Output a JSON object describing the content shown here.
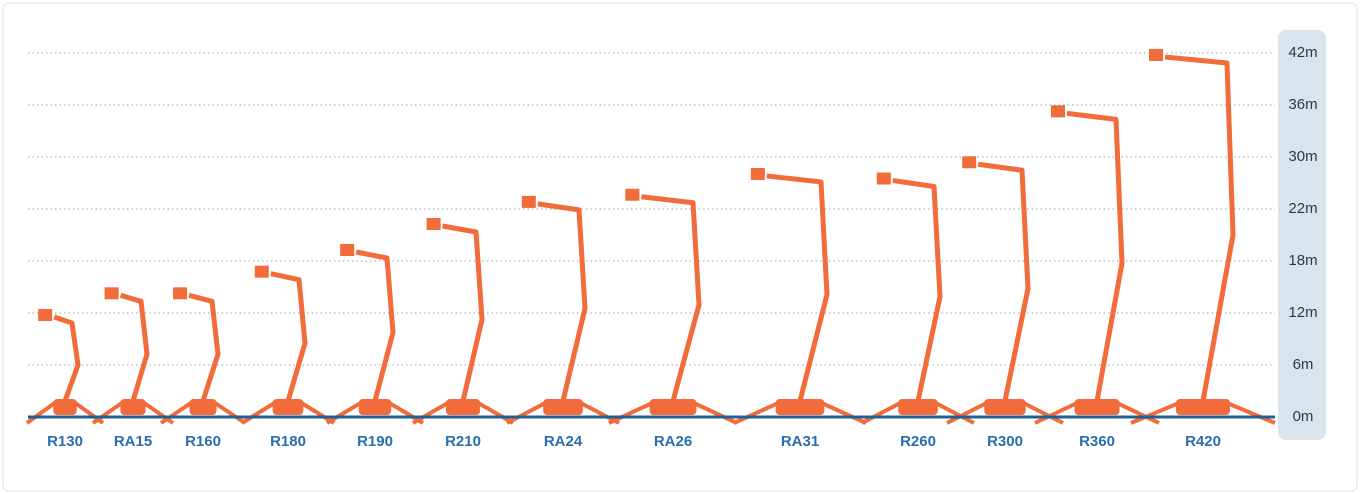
{
  "chart_data": {
    "type": "machines",
    "categories": [
      "R130",
      "RA15",
      "R160",
      "R180",
      "R190",
      "R210",
      "RA24",
      "RA26",
      "RA31",
      "R260",
      "R300",
      "R360",
      "R420"
    ],
    "values": [
      12,
      14.5,
      14.5,
      17,
      19,
      21,
      23.4,
      24.5,
      27.7,
      27,
      29.5,
      35.5,
      42
    ],
    "color": "#f26b3a",
    "ylim": [
      0,
      42
    ],
    "yticks": [
      {
        "value": 0,
        "label": "0m"
      },
      {
        "value": 6,
        "label": "6m"
      },
      {
        "value": 12,
        "label": "12m"
      },
      {
        "value": 18,
        "label": "18m"
      },
      {
        "value": 22,
        "label": "22m"
      },
      {
        "value": 30,
        "label": "30m"
      },
      {
        "value": 36,
        "label": "36m"
      },
      {
        "value": 42,
        "label": "42m"
      }
    ],
    "grid": true
  }
}
